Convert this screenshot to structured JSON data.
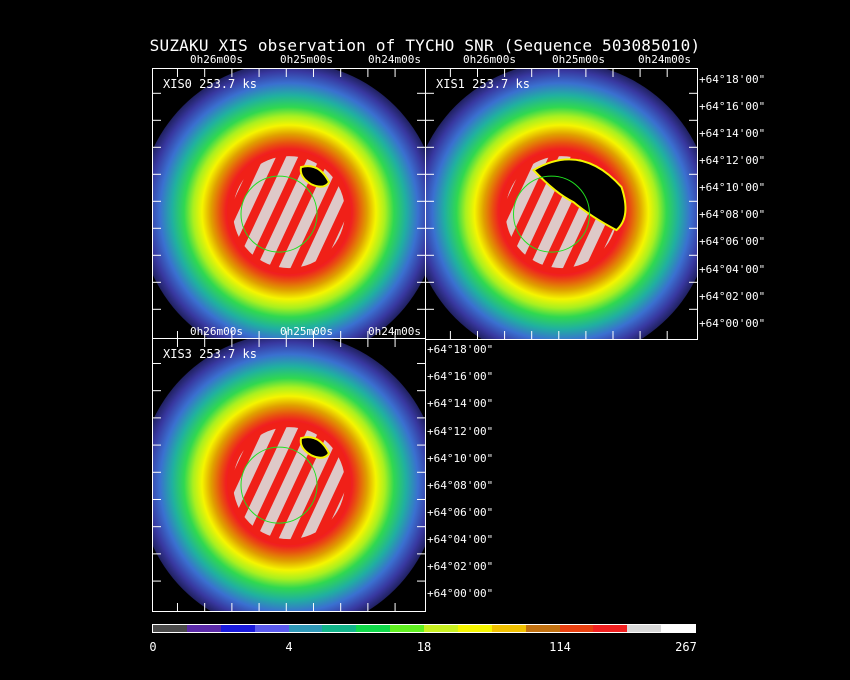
{
  "title": "SUZAKU XIS observation of TYCHO SNR  (Sequence 503085010)",
  "panels": [
    {
      "id": "xis0",
      "label": "XIS0 253.7 ks",
      "feature": "small-dark"
    },
    {
      "id": "xis1",
      "label": "XIS1 253.7 ks",
      "feature": "large-dark"
    },
    {
      "id": "xis3",
      "label": "XIS3 253.7 ks",
      "feature": "small-dark"
    }
  ],
  "ra_ticks": [
    "0h26m00s",
    "0h25m00s",
    "0h24m00s"
  ],
  "dec_ticks": [
    "+64°18'00\"",
    "+64°16'00\"",
    "+64°14'00\"",
    "+64°12'00\"",
    "+64°10'00\"",
    "+64°08'00\"",
    "+64°06'00\"",
    "+64°04'00\"",
    "+64°02'00\"",
    "+64°00'00\""
  ],
  "colorbar": {
    "colors": [
      "#4a4a4a",
      "#5b2aa8",
      "#1a1adc",
      "#5a5aee",
      "#2f98b8",
      "#12b48a",
      "#10d84a",
      "#60f020",
      "#c8f020",
      "#f5f500",
      "#f0c000",
      "#c07010",
      "#e84010",
      "#f02020",
      "#d8d8d8",
      "#ffffff"
    ],
    "labels": [
      "0",
      "4",
      "18",
      "114",
      "267"
    ]
  }
}
